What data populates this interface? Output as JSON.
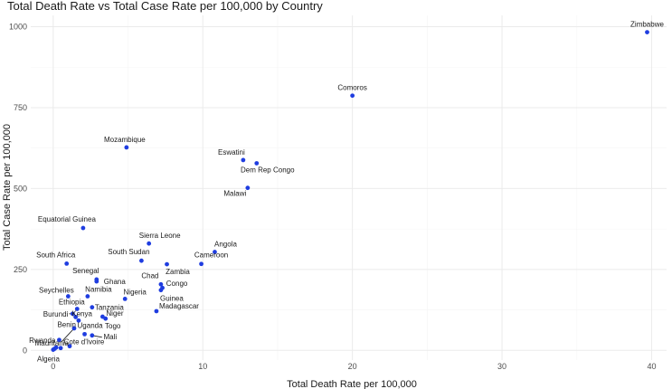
{
  "chart_data": {
    "type": "scatter",
    "title": "Total Death Rate vs Total Case Rate per 100,000 by Country",
    "xlabel": "Total Death Rate per 100,000",
    "ylabel": "Total Case Rate per 100,000",
    "xlim": [
      -1.5,
      41
    ],
    "ylim": [
      -30,
      1035
    ],
    "x_ticks": [
      0,
      10,
      20,
      30,
      40
    ],
    "y_ticks": [
      0,
      250,
      500,
      750,
      1000
    ],
    "grid": true,
    "point_color": "#1f3de0",
    "points": [
      {
        "name": "Zimbabwe",
        "x": 39.7,
        "y": 983
      },
      {
        "name": "Comoros",
        "x": 20.0,
        "y": 787
      },
      {
        "name": "Mozambique",
        "x": 4.9,
        "y": 627
      },
      {
        "name": "Eswatini",
        "x": 12.7,
        "y": 588
      },
      {
        "name": "Dem Rep Congo",
        "x": 13.6,
        "y": 578
      },
      {
        "name": "Malawi",
        "x": 13.0,
        "y": 502
      },
      {
        "name": "Equatorial Guinea",
        "x": 2.0,
        "y": 378
      },
      {
        "name": "Sierra Leone",
        "x": 6.4,
        "y": 330
      },
      {
        "name": "Angola",
        "x": 10.8,
        "y": 304
      },
      {
        "name": "South Sudan",
        "x": 5.9,
        "y": 277
      },
      {
        "name": "South Africa",
        "x": 0.9,
        "y": 268
      },
      {
        "name": "Zambia",
        "x": 7.6,
        "y": 266
      },
      {
        "name": "Cameroon",
        "x": 9.9,
        "y": 267
      },
      {
        "name": "Senegal",
        "x": 2.9,
        "y": 219
      },
      {
        "name": "Ghana",
        "x": 2.9,
        "y": 213
      },
      {
        "name": "Chad",
        "x": 7.2,
        "y": 204
      },
      {
        "name": "Congo",
        "x": 7.3,
        "y": 193
      },
      {
        "name": "Guinea",
        "x": 7.2,
        "y": 186
      },
      {
        "name": "Seychelles",
        "x": 1.0,
        "y": 167
      },
      {
        "name": "Namibia",
        "x": 2.3,
        "y": 167
      },
      {
        "name": "Nigeria",
        "x": 4.8,
        "y": 159
      },
      {
        "name": "Ethiopia",
        "x": 1.6,
        "y": 128
      },
      {
        "name": "Tanzania",
        "x": 2.6,
        "y": 133
      },
      {
        "name": "Madagascar",
        "x": 6.9,
        "y": 121
      },
      {
        "name": "Burundi",
        "x": 1.3,
        "y": 113
      },
      {
        "name": "Kenya",
        "x": 1.5,
        "y": 103
      },
      {
        "name": "Niger",
        "x": 3.3,
        "y": 104
      },
      {
        "name": "Togo",
        "x": 3.5,
        "y": 98
      },
      {
        "name": "Benin",
        "x": 1.7,
        "y": 92
      },
      {
        "name": "Uganda",
        "x": 2.1,
        "y": 50
      },
      {
        "name": "Mali",
        "x": 2.6,
        "y": 46
      },
      {
        "name": "Mauritania",
        "x": 1.4,
        "y": 68
      },
      {
        "name": "Cote d'Ivoire",
        "x": 1.1,
        "y": 13
      },
      {
        "name": "Rwanda",
        "x": 0.4,
        "y": 32
      },
      {
        "name": "Algeria",
        "x": 0.1,
        "y": 5
      },
      {
        "name": "",
        "x": 0.0,
        "y": 2
      },
      {
        "name": "",
        "x": 0.2,
        "y": 9
      },
      {
        "name": "",
        "x": 0.5,
        "y": 7
      }
    ]
  }
}
